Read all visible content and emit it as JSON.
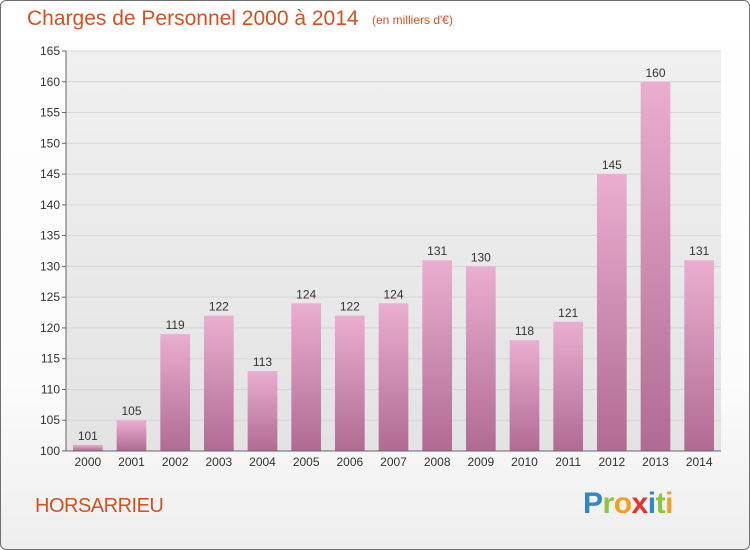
{
  "title": "Charges de Personnel 2000 à 2014",
  "subtitle": "(en milliers d'€)",
  "town": "HORSARRIEU",
  "logo_text": "Proxiti",
  "logo_letters": [
    "P",
    "r",
    "o",
    "x",
    "i",
    "t",
    "i"
  ],
  "colors": {
    "title": "#d2511f",
    "bar_top": "#eaaed0",
    "bar_bottom": "#b06b93",
    "grid": "#d6d6d6",
    "axis": "#666666",
    "tick_text": "#333333"
  },
  "chart_data": {
    "type": "bar",
    "title": "Charges de Personnel 2000 à 2014",
    "subtitle": "(en milliers d'€)",
    "categories": [
      "2000",
      "2001",
      "2002",
      "2003",
      "2004",
      "2005",
      "2006",
      "2007",
      "2008",
      "2009",
      "2010",
      "2011",
      "2012",
      "2013",
      "2014"
    ],
    "values": [
      101,
      105,
      119,
      122,
      113,
      124,
      122,
      124,
      131,
      130,
      118,
      121,
      145,
      160,
      131
    ],
    "ylim": [
      100,
      165
    ],
    "yticks": [
      100,
      105,
      110,
      115,
      120,
      125,
      130,
      135,
      140,
      145,
      150,
      155,
      160,
      165
    ],
    "grid": true,
    "data_labels": true
  }
}
